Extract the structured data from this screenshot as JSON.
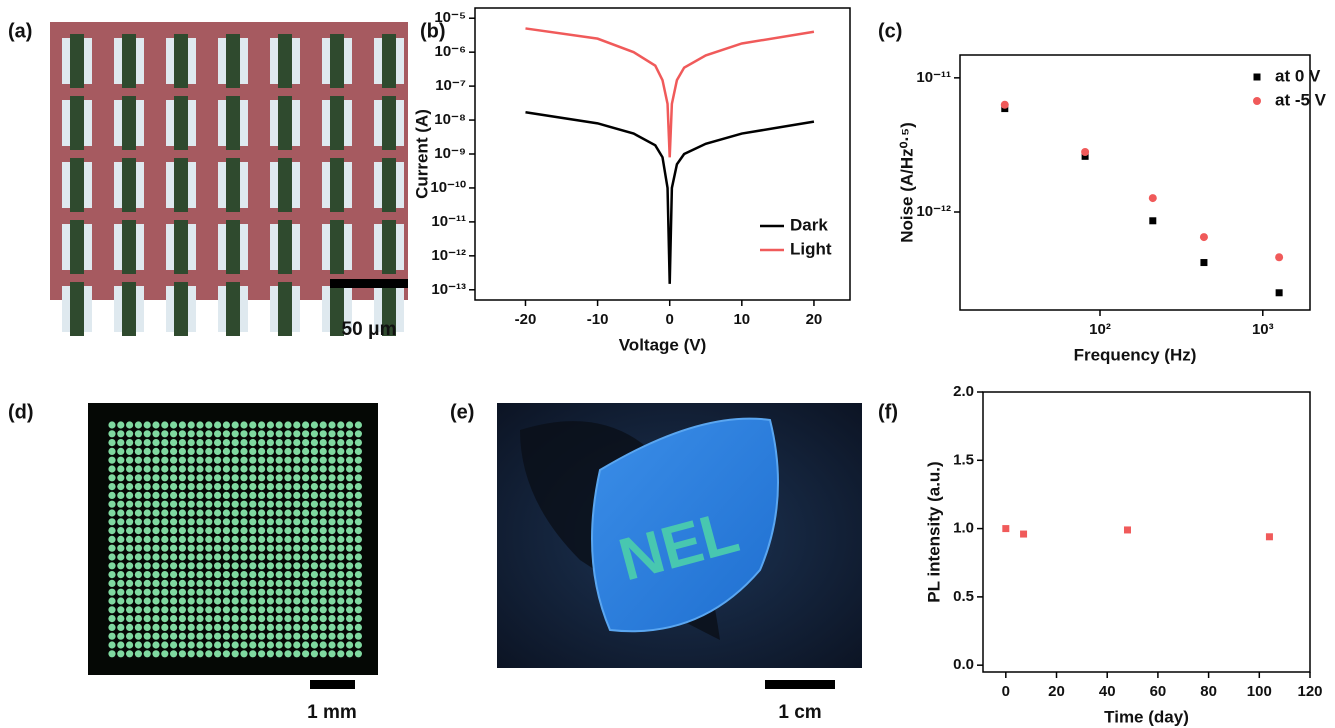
{
  "panels": {
    "labels": [
      "(a)",
      "(b)",
      "(c)",
      "(d)",
      "(e)",
      "(f)"
    ],
    "scale_bars": [
      "50 μm",
      "1 mm",
      "1 cm"
    ],
    "photo_text": "NEL"
  },
  "chart_data": [
    {
      "type": "line",
      "xlabel": "Voltage (V)",
      "ylabel": "Current (A)",
      "yscale": "log",
      "xscale": "linear",
      "xlim": [
        -27,
        25
      ],
      "ylim": [
        5e-14,
        2e-05
      ],
      "xticks": [
        -20,
        -10,
        0,
        10,
        20
      ],
      "yticks": [
        {
          "value": 1e-13,
          "label": "10⁻¹³"
        },
        {
          "value": 1e-12,
          "label": "10⁻¹²"
        },
        {
          "value": 1e-11,
          "label": "10⁻¹¹"
        },
        {
          "value": 1e-10,
          "label": "10⁻¹⁰"
        },
        {
          "value": 1e-09,
          "label": "10⁻⁹"
        },
        {
          "value": 1e-08,
          "label": "10⁻⁸"
        },
        {
          "value": 1e-07,
          "label": "10⁻⁷"
        },
        {
          "value": 1e-06,
          "label": "10⁻⁶"
        },
        {
          "value": 1e-05,
          "label": "10⁻⁵"
        }
      ],
      "x": [
        -20,
        -10,
        -5,
        -2,
        -1,
        -0.3,
        0,
        0.3,
        1,
        2,
        5,
        10,
        20
      ],
      "series": [
        {
          "name": "Dark",
          "color": "#000000",
          "values": [
            1.7e-08,
            8e-09,
            4e-09,
            1.8e-09,
            8e-10,
            1e-10,
            1.5e-13,
            1e-10,
            5e-10,
            1e-09,
            2e-09,
            4e-09,
            9e-09
          ]
        },
        {
          "name": "Light",
          "color": "#f05a5a",
          "values": [
            5e-06,
            2.5e-06,
            1e-06,
            4e-07,
            1.5e-07,
            3e-08,
            8e-10,
            3e-08,
            1.5e-07,
            3.5e-07,
            8e-07,
            1.8e-06,
            4e-06
          ]
        }
      ],
      "legend": "lower right"
    },
    {
      "type": "scatter",
      "xlabel": "Frequency (Hz)",
      "ylabel": "Noise (A/Hz⁰·⁵)",
      "xscale": "log",
      "yscale": "log",
      "xlim": [
        13.8,
        1950
      ],
      "ylim": [
        1.86e-13,
        1.48e-11
      ],
      "xticks": [
        {
          "value": 100,
          "label": "10²"
        },
        {
          "value": 1000,
          "label": "10³"
        }
      ],
      "yticks": [
        {
          "value": 1e-12,
          "label": "10⁻¹²"
        },
        {
          "value": 1e-11,
          "label": "10⁻¹¹"
        }
      ],
      "x": [
        26,
        81,
        211,
        435,
        1260
      ],
      "series": [
        {
          "name": "at 0 V",
          "color": "#000000",
          "marker": "square",
          "values": [
            5.9e-12,
            2.6e-12,
            8.6e-13,
            4.2e-13,
            2.5e-13
          ]
        },
        {
          "name": "at -5 V",
          "color": "#f05a5a",
          "marker": "circle",
          "values": [
            6.3e-12,
            2.8e-12,
            1.27e-12,
            6.5e-13,
            4.6e-13
          ]
        }
      ],
      "legend": "upper right"
    },
    {
      "type": "scatter",
      "xlabel": "Time (day)",
      "ylabel": "PL intensity (a.u.)",
      "xscale": "linear",
      "yscale": "linear",
      "xlim": [
        -9,
        120
      ],
      "ylim": [
        -0.05,
        2.0
      ],
      "xticks": [
        0,
        20,
        40,
        60,
        80,
        100,
        120
      ],
      "yticks": [
        {
          "value": 0,
          "label": "0.0"
        },
        {
          "value": 0.5,
          "label": "0.5"
        },
        {
          "value": 1,
          "label": "1.0"
        },
        {
          "value": 1.5,
          "label": "1.5"
        },
        {
          "value": 2,
          "label": "2.0"
        }
      ],
      "x": [
        0,
        7,
        48,
        104
      ],
      "series": [
        {
          "color": "#f05a5a",
          "marker": "square",
          "values": [
            1.0,
            0.96,
            0.99,
            0.94
          ]
        }
      ]
    }
  ]
}
